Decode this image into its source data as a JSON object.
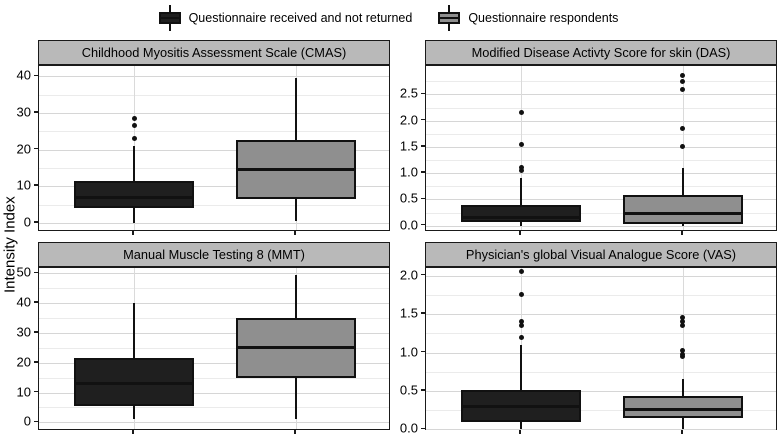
{
  "figure": {
    "y_axis_label": "Intensity Index"
  },
  "colors": {
    "strip_bg": "#b9b9b9",
    "panel_border": "#1a1a1a",
    "grid_major": "#d6d6d6",
    "grid_minor": "#ebebeb",
    "box_outline": "#111111",
    "box_black": "#1f1f1f",
    "box_gray": "#8f8f8f"
  },
  "chart_data": {
    "type": "box",
    "layout": "2x2-facets",
    "legend_position": "top",
    "grid": true,
    "ylabel": "Intensity Index",
    "groups": [
      {
        "label": "Questionnaire received and not returned",
        "fill": "#1f1f1f"
      },
      {
        "label": "Questionnaire respondents",
        "fill": "#8f8f8f"
      }
    ],
    "panels": [
      {
        "title": "Childhood Myositis Assessment Scale (CMAS)",
        "row": 0,
        "col": 0,
        "ylim": [
          -2.5,
          42.8
        ],
        "yticks": [
          {
            "v": 0,
            "label": "0"
          },
          {
            "v": 10,
            "label": "10"
          },
          {
            "v": 20,
            "label": "20"
          },
          {
            "v": 30,
            "label": "30"
          },
          {
            "v": 40,
            "label": "40"
          }
        ],
        "boxes": [
          {
            "group": 0,
            "low": 0,
            "q1": 4,
            "median": 7,
            "q3": 11.5,
            "high": 21,
            "outliers": [
              23,
              26.5,
              28.5
            ]
          },
          {
            "group": 1,
            "low": 0.5,
            "q1": 6.5,
            "median": 14.5,
            "q3": 22.5,
            "high": 39.5,
            "outliers": []
          }
        ]
      },
      {
        "title": "Modified Disease Activty Score for skin (DAS)",
        "row": 0,
        "col": 1,
        "ylim": [
          -0.12,
          3.04
        ],
        "yticks": [
          {
            "v": 0,
            "label": "0.0"
          },
          {
            "v": 0.5,
            "label": "0.5"
          },
          {
            "v": 1,
            "label": "1.0"
          },
          {
            "v": 1.5,
            "label": "1.5"
          },
          {
            "v": 2,
            "label": "2.0"
          },
          {
            "v": 2.5,
            "label": "2.5"
          }
        ],
        "boxes": [
          {
            "group": 0,
            "low": 0,
            "q1": 0.07,
            "median": 0.16,
            "q3": 0.4,
            "high": 0.9,
            "outliers": [
              1.05,
              1.1,
              1.55,
              2.15
            ]
          },
          {
            "group": 1,
            "low": 0,
            "q1": 0.03,
            "median": 0.23,
            "q3": 0.58,
            "high": 1.1,
            "outliers": [
              1.5,
              1.85,
              2.6,
              2.75,
              2.85
            ]
          }
        ]
      },
      {
        "title": "Manual Muscle Testing 8 (MMT)",
        "row": 1,
        "col": 0,
        "ylim": [
          -2.9,
          51.8
        ],
        "yticks": [
          {
            "v": 0,
            "label": "0"
          },
          {
            "v": 10,
            "label": "10"
          },
          {
            "v": 20,
            "label": "20"
          },
          {
            "v": 30,
            "label": "30"
          },
          {
            "v": 40,
            "label": "40"
          },
          {
            "v": 50,
            "label": "50"
          }
        ],
        "boxes": [
          {
            "group": 0,
            "low": 1,
            "q1": 5.5,
            "median": 13,
            "q3": 21.5,
            "high": 40,
            "outliers": []
          },
          {
            "group": 1,
            "low": 1,
            "q1": 15,
            "median": 25,
            "q3": 35,
            "high": 49.5,
            "outliers": []
          }
        ]
      },
      {
        "title": "Physician's global Visual Analogue Score (VAS)",
        "row": 1,
        "col": 1,
        "ylim": [
          -0.02,
          2.1
        ],
        "yticks": [
          {
            "v": 0,
            "label": "0.0"
          },
          {
            "v": 0.5,
            "label": "0.5"
          },
          {
            "v": 1,
            "label": "1.0"
          },
          {
            "v": 1.5,
            "label": "1.5"
          },
          {
            "v": 2,
            "label": "2.0"
          }
        ],
        "boxes": [
          {
            "group": 0,
            "low": 0,
            "q1": 0.1,
            "median": 0.3,
            "q3": 0.51,
            "high": 1.1,
            "outliers": [
              1.2,
              1.35,
              1.4,
              1.75,
              2.05
            ]
          },
          {
            "group": 1,
            "low": 0,
            "q1": 0.15,
            "median": 0.26,
            "q3": 0.43,
            "high": 0.65,
            "outliers": [
              0.95,
              0.97,
              1.03,
              1.35,
              1.4,
              1.45
            ]
          }
        ]
      }
    ]
  }
}
